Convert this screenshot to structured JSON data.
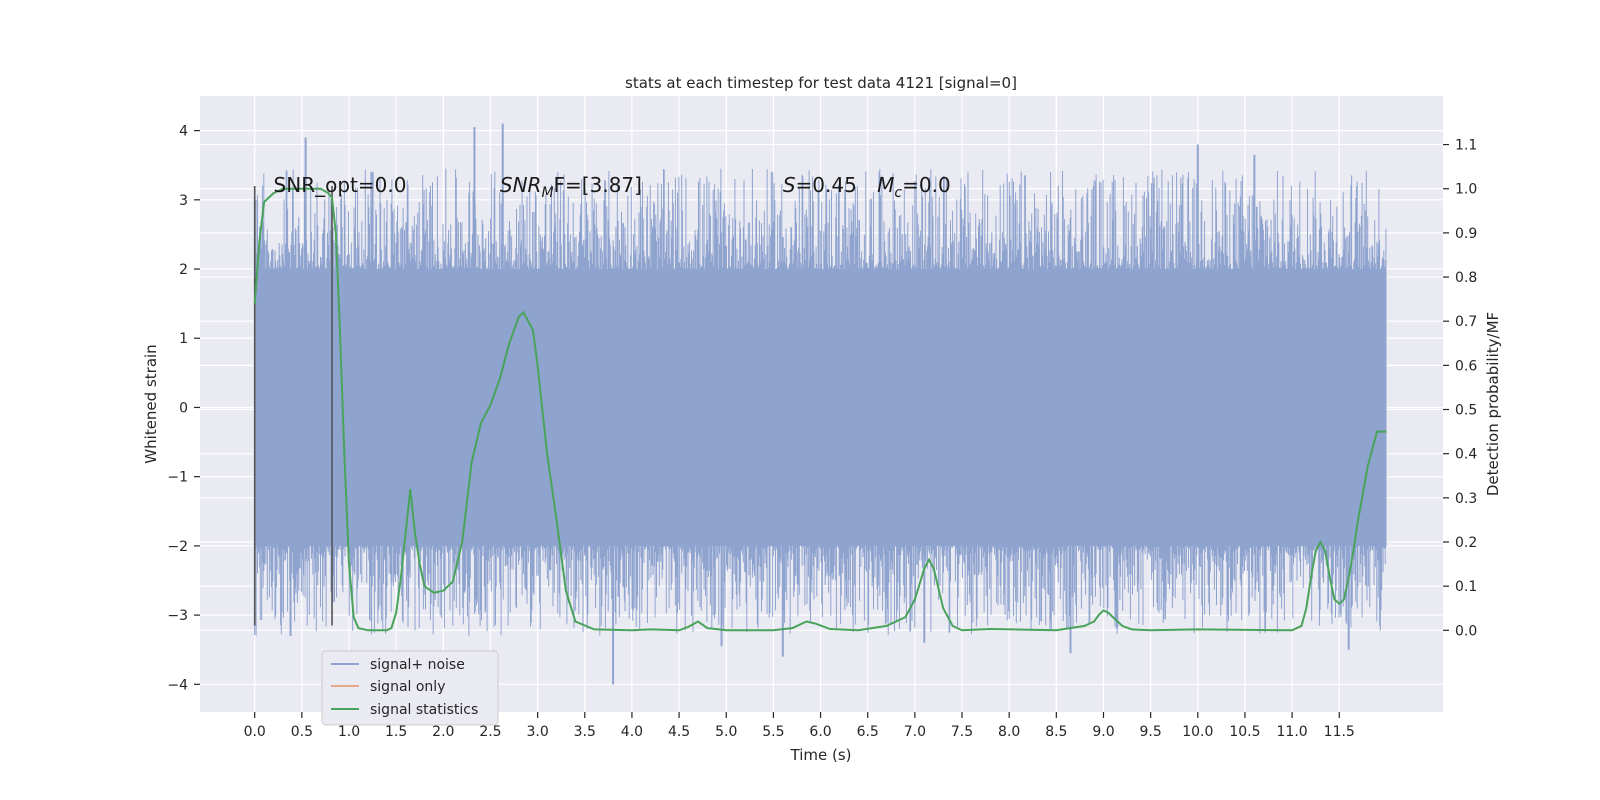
{
  "colors": {
    "plot_bg": "#eaeaf2",
    "grid": "#ffffff",
    "noise": "#8fa3cf",
    "signal_only": "#e7a98a",
    "statistics": "#4aa35a",
    "marker": "#555555"
  },
  "chart_data": {
    "type": "line",
    "title": "stats at each timestep for test data 4121 [signal=0]",
    "xlabel": "Time (s)",
    "ylabel_left": "Whitened strain",
    "ylabel_right": "Detection probability/MF",
    "xlim": [
      -0.58,
      12.6
    ],
    "ylim_left": [
      -4.4,
      4.5
    ],
    "ylim_right": [
      -0.185,
      1.21
    ],
    "x_ticks": [
      0.0,
      0.5,
      1.0,
      1.5,
      2.0,
      2.5,
      3.0,
      3.5,
      4.0,
      4.5,
      5.0,
      5.5,
      6.0,
      6.5,
      7.0,
      7.5,
      8.0,
      8.5,
      9.0,
      9.5,
      10.0,
      10.5,
      11.0,
      11.5
    ],
    "x_tick_labels": [
      "0.0",
      "0.5",
      "1.0",
      "1.5",
      "2.0",
      "2.5",
      "3.0",
      "3.5",
      "4.0",
      "4.5",
      "5.0",
      "5.5",
      "6.0",
      "6.5",
      "7.0",
      "7.5",
      "8.0",
      "8.5",
      "9.0",
      "9.5",
      "10.0",
      "10.5",
      "11.0",
      "11.5"
    ],
    "y_left_ticks": [
      -4,
      -3,
      -2,
      -1,
      0,
      1,
      2,
      3,
      4
    ],
    "y_left_tick_labels": [
      "−4",
      "−3",
      "−2",
      "−1",
      "0",
      "1",
      "2",
      "3",
      "4"
    ],
    "y_right_ticks": [
      0.0,
      0.1,
      0.2,
      0.3,
      0.4,
      0.5,
      0.6,
      0.7,
      0.8,
      0.9,
      1.0,
      1.1
    ],
    "y_right_tick_labels": [
      "0.0",
      "0.1",
      "0.2",
      "0.3",
      "0.4",
      "0.5",
      "0.6",
      "0.7",
      "0.8",
      "0.9",
      "1.0",
      "1.1"
    ],
    "noise_series": {
      "name": "signal+ noise",
      "x_range": [
        0.0,
        12.0
      ],
      "core_band": [
        -2.0,
        2.0
      ],
      "notable_peaks": [
        {
          "x": 0.54,
          "y": 3.9
        },
        {
          "x": 2.33,
          "y": 4.05
        },
        {
          "x": 2.63,
          "y": 4.1
        },
        {
          "x": 10.0,
          "y": 3.8
        },
        {
          "x": 10.6,
          "y": 3.65
        },
        {
          "x": 1.25,
          "y": 3.4
        },
        {
          "x": 0.38,
          "y": -3.3
        },
        {
          "x": 3.8,
          "y": -4.0
        },
        {
          "x": 5.6,
          "y": -3.6
        },
        {
          "x": 8.65,
          "y": -3.55
        },
        {
          "x": 11.6,
          "y": -3.5
        },
        {
          "x": 4.95,
          "y": -3.45
        },
        {
          "x": 7.1,
          "y": -3.4
        }
      ]
    },
    "signal_only_series": {
      "name": "signal only",
      "values": []
    },
    "statistics_series": {
      "name": "signal statistics",
      "x": [
        0.0,
        0.05,
        0.1,
        0.2,
        0.3,
        0.5,
        0.7,
        0.78,
        0.82,
        0.86,
        0.9,
        0.95,
        1.0,
        1.05,
        1.1,
        1.2,
        1.3,
        1.4,
        1.45,
        1.5,
        1.55,
        1.6,
        1.65,
        1.7,
        1.75,
        1.8,
        1.9,
        2.0,
        2.1,
        2.2,
        2.3,
        2.4,
        2.5,
        2.6,
        2.7,
        2.8,
        2.85,
        2.9,
        2.95,
        3.0,
        3.05,
        3.1,
        3.2,
        3.3,
        3.4,
        3.6,
        4.0,
        4.2,
        4.5,
        4.6,
        4.7,
        4.8,
        5.0,
        5.5,
        5.7,
        5.85,
        5.95,
        6.1,
        6.4,
        6.7,
        6.8,
        6.9,
        7.0,
        7.1,
        7.15,
        7.2,
        7.3,
        7.4,
        7.5,
        7.8,
        8.5,
        8.8,
        8.9,
        8.95,
        9.0,
        9.05,
        9.1,
        9.2,
        9.3,
        9.5,
        10.0,
        11.0,
        11.1,
        11.15,
        11.2,
        11.25,
        11.3,
        11.35,
        11.4,
        11.45,
        11.5,
        11.55,
        11.6,
        11.65,
        11.7,
        11.8,
        11.9,
        12.0
      ],
      "values": [
        0.74,
        0.88,
        0.97,
        0.99,
        1.0,
        1.0,
        1.0,
        0.99,
        0.98,
        0.9,
        0.7,
        0.4,
        0.15,
        0.03,
        0.005,
        0.0,
        0.0,
        0.0,
        0.005,
        0.04,
        0.12,
        0.22,
        0.32,
        0.22,
        0.15,
        0.1,
        0.085,
        0.09,
        0.11,
        0.2,
        0.38,
        0.47,
        0.51,
        0.57,
        0.65,
        0.71,
        0.72,
        0.7,
        0.68,
        0.6,
        0.5,
        0.4,
        0.25,
        0.09,
        0.02,
        0.002,
        0.0,
        0.002,
        0.0,
        0.008,
        0.02,
        0.005,
        0.0,
        0.0,
        0.005,
        0.02,
        0.015,
        0.003,
        0.0,
        0.01,
        0.02,
        0.03,
        0.07,
        0.14,
        0.16,
        0.14,
        0.05,
        0.01,
        0.0,
        0.003,
        0.0,
        0.01,
        0.02,
        0.035,
        0.045,
        0.04,
        0.03,
        0.01,
        0.002,
        0.0,
        0.002,
        0.0,
        0.01,
        0.05,
        0.12,
        0.18,
        0.2,
        0.18,
        0.12,
        0.07,
        0.06,
        0.07,
        0.12,
        0.18,
        0.25,
        0.37,
        0.45,
        0.45
      ]
    },
    "vertical_markers": [
      {
        "x": 0.0,
        "y_range": [
          -3.15,
          3.2
        ]
      },
      {
        "x": 0.82,
        "y_range": [
          -3.15,
          3.2
        ]
      }
    ],
    "annotations": {
      "snr_opt": "SNR_opt=0.0",
      "snr_mf_symbol": "SNR",
      "snr_mf_sub": "M",
      "snr_mf_tail": "F=[3.87]",
      "s_symbol": "S",
      "s_value": "=0.45",
      "mc_symbol": "M",
      "mc_sub": "c",
      "mc_value": "=0.0"
    },
    "annotation_positions_data": {
      "snr_opt": {
        "x": 0.2,
        "y": 3.2
      },
      "snr_mf": {
        "x": 2.6,
        "y": 3.2
      },
      "s": {
        "x": 5.6,
        "y": 3.2
      },
      "mc": {
        "x": 6.6,
        "y": 3.2
      }
    },
    "legend": {
      "placement": "lower-left",
      "entries": [
        "signal+ noise",
        "signal only",
        "signal statistics"
      ]
    }
  }
}
